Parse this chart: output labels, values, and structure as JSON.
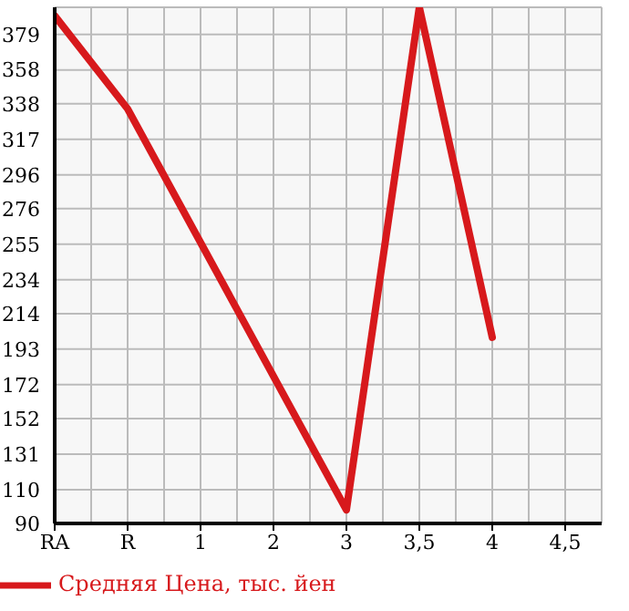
{
  "chart_data": {
    "type": "line",
    "categories": [
      "RA",
      "R",
      "1",
      "2",
      "3",
      "3,5",
      "4",
      "4,5"
    ],
    "series": [
      {
        "name": "Средняя Цена, тыс. йен",
        "color": "#d7191c",
        "values": [
          390,
          335,
          null,
          null,
          98,
          395,
          200,
          null
        ]
      }
    ],
    "ylim": [
      90,
      395
    ],
    "yticks": [
      90,
      110,
      131,
      152,
      172,
      193,
      214,
      234,
      255,
      276,
      296,
      317,
      338,
      358,
      379
    ],
    "grid": true,
    "legend": "bottom",
    "marker": "none",
    "line_style": "solid"
  }
}
